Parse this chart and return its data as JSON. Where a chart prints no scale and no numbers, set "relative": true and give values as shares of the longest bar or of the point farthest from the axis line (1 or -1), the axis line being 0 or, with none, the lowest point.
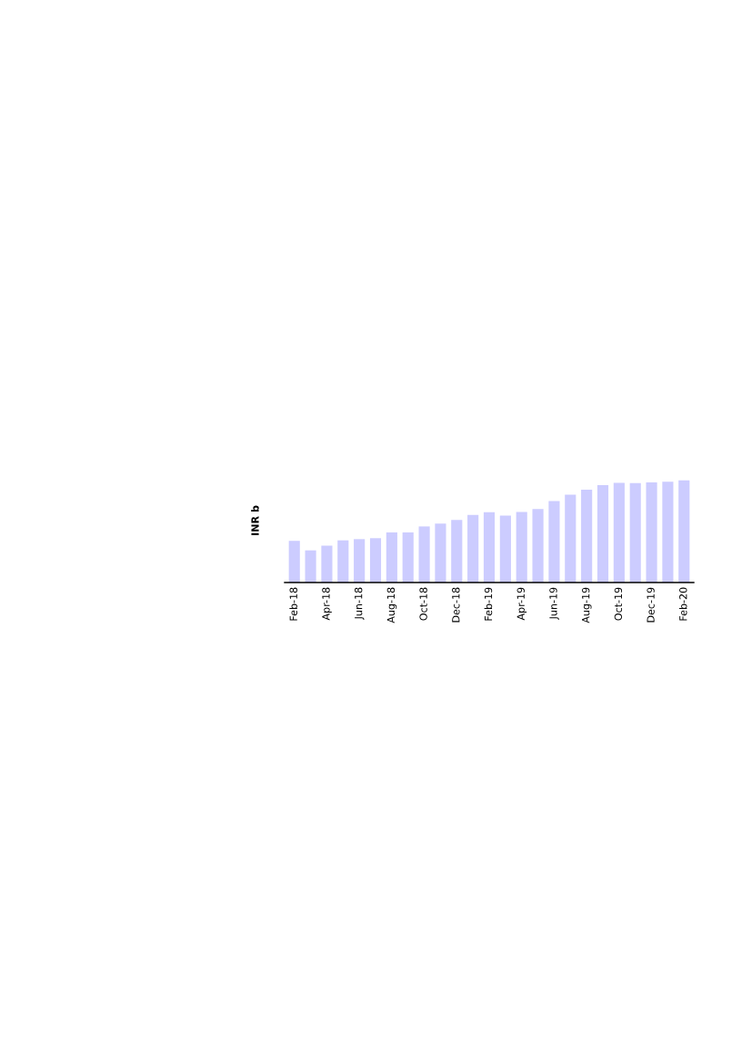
{
  "chart_data": {
    "type": "bar",
    "ylabel": "INR b",
    "relative": true,
    "color": "#ccccff",
    "categories": [
      "Feb-18",
      null,
      "Apr-18",
      null,
      "Jun-18",
      null,
      "Aug-18",
      null,
      "Oct-18",
      null,
      "Dec-18",
      null,
      "Feb-19",
      null,
      "Apr-19",
      null,
      "Jun-19",
      null,
      "Aug-19",
      null,
      "Oct-19",
      null,
      "Dec-19",
      null,
      "Feb-20"
    ],
    "values": [
      0.408,
      0.315,
      0.361,
      0.413,
      0.425,
      0.434,
      0.491,
      0.491,
      0.549,
      0.578,
      0.613,
      0.662,
      0.688,
      0.656,
      0.691,
      0.72,
      0.798,
      0.861,
      0.91,
      0.954,
      0.977,
      0.974,
      0.98,
      0.986,
      1.0
    ],
    "grid": false
  }
}
